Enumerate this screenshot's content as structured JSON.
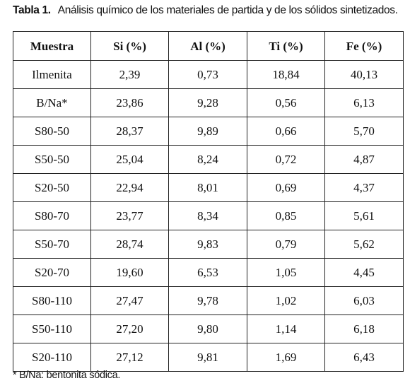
{
  "caption": {
    "label": "Tabla 1.",
    "text": "Análisis químico de los materiales de partida y de los sólidos sintetizados."
  },
  "table": {
    "headers": [
      "Muestra",
      "Si (%)",
      "Al (%)",
      "Ti (%)",
      "Fe (%)"
    ],
    "rows": [
      [
        "Ilmenita",
        "2,39",
        "0,73",
        "18,84",
        "40,13"
      ],
      [
        "B/Na*",
        "23,86",
        "9,28",
        "0,56",
        "6,13"
      ],
      [
        "S80-50",
        "28,37",
        "9,89",
        "0,66",
        "5,70"
      ],
      [
        "S50-50",
        "25,04",
        "8,24",
        "0,72",
        "4,87"
      ],
      [
        "S20-50",
        "22,94",
        "8,01",
        "0,69",
        "4,37"
      ],
      [
        "S80-70",
        "23,77",
        "8,34",
        "0,85",
        "5,61"
      ],
      [
        "S50-70",
        "28,74",
        "9,83",
        "0,79",
        "5,62"
      ],
      [
        "S20-70",
        "19,60",
        "6,53",
        "1,05",
        "4,45"
      ],
      [
        "S80-110",
        "27,47",
        "9,78",
        "1,02",
        "6,03"
      ],
      [
        "S50-110",
        "27,20",
        "9,80",
        "1,14",
        "6,18"
      ],
      [
        "S20-110",
        "27,12",
        "9,81",
        "1,69",
        "6,43"
      ]
    ]
  },
  "footnote": "* B/Na: bentonita sódica."
}
